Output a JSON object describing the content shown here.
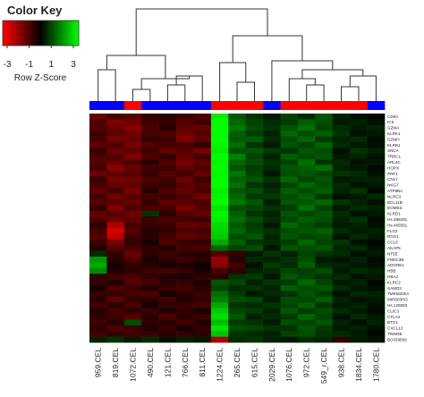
{
  "chart_data": {
    "type": "heatmap",
    "color_key_title": "Color Key",
    "color_key_label": "Row Z-Score",
    "zlim": [
      -3,
      3
    ],
    "color_key_ticks": [
      -3,
      -1,
      1,
      3
    ],
    "low_color": "#ff0000",
    "mid_color": "#000000",
    "high_color": "#00ff00",
    "columns": [
      "959.CEL",
      "819.CEL",
      "1072.CEL",
      "490.CEL",
      "121.CEL",
      "766.CEL",
      "811.CEL",
      "1224.CEL",
      "265.CEL",
      "615.CEL",
      "2029.CEL",
      "1076.CEL",
      "972.CEL",
      "549_r.CEL",
      "938.CEL",
      "1834.CEL",
      "1780.CEL"
    ],
    "column_colors": [
      "#0000ff",
      "#0000ff",
      "#ff0000",
      "#0000ff",
      "#0000ff",
      "#0000ff",
      "#0000ff",
      "#ff0000",
      "#ff0000",
      "#ff0000",
      "#0000ff",
      "#ff0000",
      "#ff0000",
      "#ff0000",
      "#ff0000",
      "#ff0000",
      "#0000ff"
    ],
    "rows": [
      "CD8A",
      "ICK",
      "GZMA",
      "KLRK1",
      "GZMH",
      "KLRB1",
      "SNCA",
      "TRBC1",
      "ARL4C",
      "HOPX",
      "PRF1",
      "CNLY",
      "NKG7",
      "ATP8B2",
      "NLRC3",
      "BCL11B",
      "EOMES",
      "KLRD1",
      "Hs.388291",
      "Hs.465561",
      "FLG2",
      "RGS1",
      "CCL5",
      "AKAP5",
      "NT5E",
      "FNDC3B",
      "ADGRE1",
      "HBB",
      "HBA2",
      "KLRC2",
      "SAMD3",
      "TMEM200A",
      "MIR503HG",
      "Hs.125903",
      "CLIC3",
      "CTLA4",
      "BTG1",
      "CXCL13",
      "TRIM65",
      "BC039509"
    ],
    "values": [
      [
        -1.2,
        -0.8,
        -1.0,
        -0.6,
        -0.5,
        -0.7,
        -0.9,
        2.8,
        1.0,
        0.6,
        0.3,
        0.8,
        0.5,
        1.0,
        0.4,
        0.2,
        0.1
      ],
      [
        -0.9,
        -1.5,
        -1.3,
        -0.8,
        -0.6,
        -1.0,
        -0.7,
        3.0,
        1.2,
        0.8,
        0.5,
        0.7,
        1.1,
        0.9,
        0.3,
        0.4,
        0.2
      ],
      [
        -1.0,
        -1.2,
        -1.6,
        -0.9,
        -0.5,
        -1.1,
        -1.2,
        3.0,
        1.4,
        0.9,
        0.6,
        1.0,
        1.3,
        0.8,
        0.5,
        0.3,
        0.4
      ],
      [
        -0.7,
        -1.1,
        -1.3,
        -0.8,
        -0.9,
        -1.3,
        -1.0,
        3.0,
        1.1,
        0.7,
        0.4,
        1.2,
        0.9,
        1.1,
        0.6,
        0.2,
        0.3
      ],
      [
        -0.8,
        -1.4,
        -1.2,
        -0.6,
        -0.7,
        -1.5,
        -1.1,
        3.0,
        1.0,
        1.1,
        0.5,
        0.9,
        1.2,
        0.7,
        0.4,
        0.5,
        0.1
      ],
      [
        -1.1,
        -0.9,
        -1.4,
        -1.0,
        -0.8,
        -0.9,
        -0.6,
        2.9,
        1.3,
        0.6,
        0.3,
        1.0,
        0.8,
        1.2,
        0.5,
        0.3,
        0.2
      ],
      [
        -0.6,
        -1.3,
        -1.1,
        -0.7,
        -1.2,
        -1.0,
        -1.4,
        2.8,
        0.9,
        1.0,
        0.7,
        0.6,
        1.0,
        0.9,
        0.2,
        0.6,
        0.4
      ],
      [
        -0.9,
        -1.0,
        -1.5,
        -0.9,
        -0.6,
        -1.2,
        -0.8,
        3.0,
        1.5,
        0.8,
        0.4,
        1.1,
        0.9,
        1.0,
        0.3,
        0.4,
        0.2
      ],
      [
        -1.0,
        -1.2,
        -0.9,
        -0.5,
        -0.9,
        -1.4,
        -1.1,
        2.9,
        1.2,
        0.9,
        0.6,
        0.8,
        1.3,
        0.6,
        0.5,
        0.2,
        0.3
      ],
      [
        -0.8,
        -1.6,
        -1.2,
        -0.8,
        -0.7,
        -1.1,
        -0.9,
        3.0,
        1.0,
        0.7,
        0.5,
        1.0,
        1.1,
        1.3,
        0.4,
        0.3,
        0.1
      ],
      [
        -1.3,
        -1.1,
        -1.0,
        -0.6,
        -1.0,
        -0.8,
        -1.2,
        2.9,
        1.4,
        0.8,
        0.3,
        0.9,
        1.0,
        0.8,
        0.6,
        0.5,
        0.2
      ],
      [
        -0.7,
        -1.4,
        -1.3,
        -0.9,
        -0.8,
        -1.3,
        -0.7,
        3.0,
        1.1,
        1.0,
        0.6,
        1.2,
        0.8,
        1.0,
        0.3,
        0.4,
        0.4
      ],
      [
        -0.9,
        -1.2,
        -1.1,
        -0.7,
        -0.6,
        -1.0,
        -1.0,
        3.0,
        1.3,
        0.6,
        0.4,
        0.8,
        1.2,
        0.9,
        0.5,
        0.2,
        0.3
      ],
      [
        -1.1,
        -0.8,
        -1.4,
        -0.5,
        -0.9,
        -1.2,
        -0.8,
        2.8,
        1.0,
        0.9,
        0.5,
        1.1,
        0.9,
        1.1,
        0.4,
        0.6,
        0.1
      ],
      [
        -0.8,
        -1.3,
        -1.0,
        -0.8,
        -0.7,
        -0.9,
        -1.3,
        2.9,
        1.2,
        0.7,
        0.7,
        0.9,
        1.1,
        0.7,
        0.2,
        0.3,
        0.5
      ],
      [
        -1.0,
        -1.1,
        -1.2,
        -0.6,
        -1.1,
        -1.1,
        -0.9,
        3.0,
        1.4,
        1.0,
        0.3,
        1.0,
        1.0,
        1.2,
        0.6,
        0.4,
        0.2
      ],
      [
        -0.6,
        -1.5,
        -0.9,
        -0.9,
        -0.8,
        -1.4,
        -1.0,
        2.7,
        0.9,
        0.8,
        0.6,
        0.7,
        1.3,
        0.8,
        0.3,
        0.5,
        0.4
      ],
      [
        -1.2,
        -1.0,
        -1.3,
        0.6,
        -0.5,
        -1.0,
        -1.2,
        2.9,
        1.1,
        0.6,
        0.4,
        1.0,
        0.8,
        1.0,
        0.5,
        0.2,
        0.3
      ],
      [
        -0.9,
        -1.3,
        -1.1,
        -0.7,
        -0.9,
        -0.8,
        -0.7,
        2.8,
        1.3,
        0.9,
        0.5,
        0.8,
        1.1,
        0.9,
        0.4,
        0.6,
        0.1
      ],
      [
        -0.5,
        -2.0,
        -0.8,
        -0.6,
        -0.7,
        -1.2,
        -1.1,
        2.6,
        1.0,
        0.7,
        0.3,
        1.2,
        0.9,
        0.7,
        0.3,
        0.4,
        0.2
      ],
      [
        -0.8,
        -2.5,
        -1.0,
        -0.4,
        -0.6,
        -0.9,
        -0.8,
        2.5,
        1.2,
        0.8,
        0.6,
        0.9,
        1.0,
        1.1,
        0.5,
        0.3,
        0.4
      ],
      [
        -1.0,
        -2.2,
        -0.7,
        -0.5,
        -0.8,
        -1.1,
        -1.0,
        2.4,
        0.9,
        1.0,
        0.4,
        1.0,
        0.8,
        0.9,
        0.2,
        0.5,
        0.3
      ],
      [
        -0.7,
        -1.4,
        -0.6,
        -0.3,
        -0.9,
        -0.7,
        -0.6,
        2.0,
        1.1,
        0.6,
        0.5,
        0.7,
        1.2,
        0.8,
        0.6,
        0.2,
        0.1
      ],
      [
        -0.4,
        -1.0,
        -0.8,
        -0.6,
        -0.4,
        -0.8,
        -0.9,
        1.2,
        0.8,
        0.9,
        0.3,
        1.0,
        0.9,
        1.0,
        0.4,
        0.5,
        0.2
      ],
      [
        0.5,
        -0.6,
        -1.2,
        -0.5,
        -0.7,
        -0.5,
        -0.4,
        -1.0,
        -0.6,
        0.3,
        0.6,
        0.4,
        0.8,
        0.6,
        0.5,
        0.2,
        0.3
      ],
      [
        1.8,
        -0.5,
        -0.9,
        -0.3,
        -0.6,
        -0.7,
        -0.5,
        -1.8,
        -0.4,
        0.5,
        0.4,
        0.6,
        0.9,
        0.3,
        0.2,
        0.4,
        0.1
      ],
      [
        2.0,
        -0.3,
        -0.6,
        -0.5,
        -0.3,
        -0.4,
        -0.2,
        -1.6,
        -0.8,
        0.2,
        0.7,
        0.5,
        1.1,
        0.5,
        0.4,
        0.3,
        0.2
      ],
      [
        1.6,
        -0.4,
        -0.5,
        -0.7,
        -0.8,
        -0.6,
        -0.3,
        -0.8,
        -0.5,
        0.4,
        0.5,
        0.8,
        0.7,
        0.9,
        0.3,
        0.5,
        0.4
      ],
      [
        -0.5,
        -0.8,
        -0.9,
        -0.6,
        -0.4,
        -0.3,
        -0.6,
        -0.5,
        0.6,
        0.7,
        0.3,
        1.0,
        0.8,
        0.6,
        0.5,
        0.2,
        0.3
      ],
      [
        -0.6,
        -0.4,
        -1.0,
        -0.8,
        -0.5,
        -0.6,
        -0.4,
        1.0,
        0.8,
        0.4,
        0.6,
        0.7,
        1.2,
        0.8,
        0.3,
        0.4,
        0.1
      ],
      [
        -0.3,
        -0.9,
        -0.7,
        -0.4,
        -0.7,
        -0.8,
        -0.5,
        0.8,
        0.5,
        0.6,
        0.4,
        1.1,
        0.9,
        1.0,
        0.5,
        0.3,
        0.2
      ],
      [
        -0.7,
        -0.6,
        -0.8,
        -0.9,
        -0.3,
        -0.5,
        -0.7,
        1.3,
        0.7,
        0.3,
        0.5,
        0.6,
        1.0,
        0.7,
        0.2,
        0.5,
        0.4
      ],
      [
        -0.5,
        -1.1,
        -0.6,
        -0.5,
        -0.8,
        -0.4,
        -0.6,
        1.5,
        0.9,
        0.8,
        0.3,
        0.9,
        0.8,
        1.1,
        0.4,
        0.2,
        0.3
      ],
      [
        -0.8,
        -0.5,
        -0.9,
        -0.3,
        -0.6,
        -0.7,
        -0.8,
        2.0,
        0.6,
        0.5,
        0.6,
        0.8,
        1.1,
        0.6,
        0.3,
        0.4,
        0.2
      ],
      [
        -0.4,
        -0.8,
        -0.5,
        -0.7,
        -0.4,
        -0.6,
        -0.3,
        2.4,
        0.8,
        0.7,
        0.4,
        1.0,
        0.7,
        0.9,
        0.5,
        0.3,
        0.1
      ],
      [
        -0.6,
        -0.7,
        -1.0,
        -0.5,
        -0.9,
        -0.5,
        -0.7,
        2.6,
        1.0,
        0.4,
        0.5,
        0.7,
        1.2,
        0.8,
        0.2,
        0.5,
        0.3
      ],
      [
        -0.7,
        -0.5,
        0.9,
        -0.6,
        -0.5,
        -0.8,
        -0.4,
        2.2,
        0.7,
        0.6,
        0.3,
        0.9,
        0.8,
        1.0,
        0.4,
        0.2,
        0.4
      ],
      [
        -0.5,
        -0.9,
        -0.7,
        -0.4,
        -0.7,
        -0.3,
        -0.6,
        2.7,
        0.9,
        0.8,
        0.6,
        0.6,
        1.0,
        0.7,
        0.3,
        0.4,
        0.2
      ],
      [
        -0.8,
        -0.6,
        -0.8,
        -0.7,
        -0.5,
        -0.6,
        -0.5,
        2.3,
        0.6,
        0.5,
        0.4,
        0.8,
        0.9,
        0.6,
        0.5,
        0.3,
        0.1
      ],
      [
        0.4,
        0.6,
        0.3,
        0.5,
        0.2,
        0.4,
        0.3,
        -2.0,
        0.5,
        0.6,
        0.4,
        0.3,
        0.5,
        0.4,
        -0.5,
        0.3,
        0.2
      ]
    ]
  }
}
